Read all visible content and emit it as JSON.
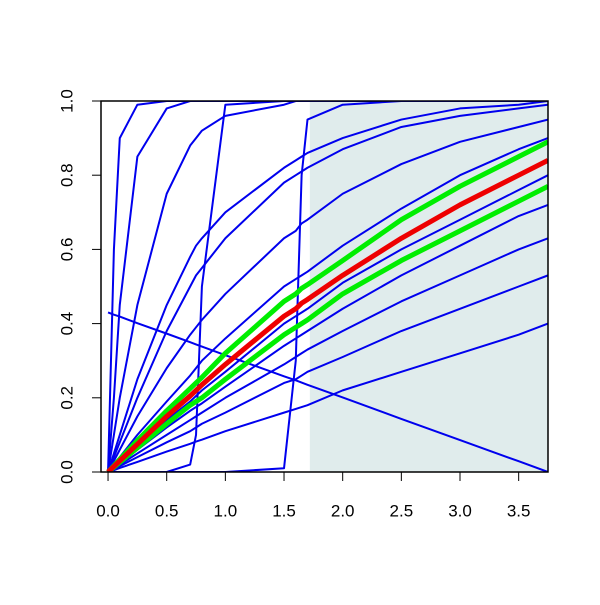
{
  "chart_data": {
    "type": "line",
    "x": [
      0,
      0.05,
      0.1,
      0.25,
      0.5,
      0.7,
      0.75,
      0.8,
      1.0,
      1.5,
      1.6,
      1.65,
      1.7,
      2.0,
      2.5,
      3.0,
      3.5,
      3.75
    ],
    "series": [
      {
        "color": "#0000ee",
        "values": [
          0,
          0.6,
          0.9,
          0.99,
          1,
          1,
          1,
          1,
          1,
          1,
          1,
          1,
          1,
          1,
          1,
          1,
          1,
          1
        ]
      },
      {
        "color": "#0000ee",
        "values": [
          0,
          0.2,
          0.45,
          0.85,
          0.98,
          1,
          1,
          1,
          1,
          1,
          1,
          1,
          1,
          1,
          1,
          1,
          1,
          1
        ]
      },
      {
        "color": "#0000ee",
        "values": [
          0,
          0.1,
          0.2,
          0.45,
          0.75,
          0.88,
          0.9,
          0.92,
          0.96,
          0.99,
          1,
          1,
          1,
          1,
          1,
          1,
          1,
          1
        ]
      },
      {
        "color": "#0000ee",
        "values": [
          0,
          0.05,
          0.1,
          0.25,
          0.45,
          0.58,
          0.61,
          0.63,
          0.7,
          0.82,
          0.84,
          0.85,
          0.86,
          0.9,
          0.95,
          0.98,
          0.99,
          1
        ]
      },
      {
        "color": "#0000ee",
        "values": [
          0,
          0,
          0,
          0,
          0,
          0.02,
          0.1,
          0.5,
          0.99,
          1,
          1,
          1,
          1,
          1,
          1,
          1,
          1,
          1
        ]
      },
      {
        "color": "#0000ee",
        "values": [
          0,
          0,
          0,
          0,
          0,
          0,
          0,
          0,
          0,
          0.01,
          0.3,
          0.8,
          0.95,
          0.99,
          1,
          1,
          1,
          1
        ]
      },
      {
        "color": "#0000ee",
        "values": [
          0.43,
          0.424,
          0.419,
          0.401,
          0.373,
          0.35,
          0.344,
          0.338,
          0.315,
          0.258,
          0.247,
          0.241,
          0.235,
          0.201,
          0.143,
          0.086,
          0.029,
          0
        ]
      },
      {
        "color": "#0000ee",
        "values": [
          0,
          0.03,
          0.06,
          0.15,
          0.28,
          0.37,
          0.39,
          0.41,
          0.48,
          0.63,
          0.65,
          0.67,
          0.68,
          0.75,
          0.83,
          0.89,
          0.93,
          0.95
        ]
      },
      {
        "color": "#0000ee",
        "values": [
          0,
          0.01,
          0.02,
          0.05,
          0.1,
          0.14,
          0.15,
          0.16,
          0.2,
          0.29,
          0.31,
          0.32,
          0.33,
          0.38,
          0.46,
          0.53,
          0.6,
          0.63
        ]
      },
      {
        "color": "#0000ee",
        "values": [
          0,
          0.008,
          0.016,
          0.04,
          0.08,
          0.11,
          0.12,
          0.13,
          0.16,
          0.24,
          0.25,
          0.26,
          0.27,
          0.31,
          0.38,
          0.44,
          0.5,
          0.53
        ]
      },
      {
        "color": "#0000ee",
        "values": [
          0,
          0.005,
          0.011,
          0.027,
          0.055,
          0.076,
          0.082,
          0.087,
          0.11,
          0.16,
          0.17,
          0.175,
          0.18,
          0.22,
          0.27,
          0.32,
          0.37,
          0.4
        ]
      },
      {
        "color": "#0000ee",
        "values": [
          0,
          0.012,
          0.024,
          0.06,
          0.12,
          0.165,
          0.175,
          0.185,
          0.23,
          0.34,
          0.36,
          0.37,
          0.38,
          0.44,
          0.53,
          0.61,
          0.69,
          0.72
        ]
      },
      {
        "color": "#0000ee",
        "values": [
          0,
          0.02,
          0.04,
          0.1,
          0.19,
          0.26,
          0.28,
          0.3,
          0.36,
          0.5,
          0.52,
          0.53,
          0.54,
          0.61,
          0.71,
          0.8,
          0.87,
          0.9
        ]
      },
      {
        "color": "#0000ee",
        "values": [
          0,
          0.014,
          0.028,
          0.07,
          0.14,
          0.19,
          0.205,
          0.22,
          0.27,
          0.4,
          0.42,
          0.43,
          0.44,
          0.51,
          0.6,
          0.68,
          0.76,
          0.8
        ]
      },
      {
        "color": "#0000ee",
        "values": [
          0,
          0.04,
          0.08,
          0.2,
          0.38,
          0.5,
          0.53,
          0.55,
          0.63,
          0.78,
          0.8,
          0.81,
          0.82,
          0.87,
          0.93,
          0.96,
          0.98,
          0.99
        ]
      },
      {
        "color": "#00ee00",
        "width": 5,
        "values": [
          0,
          0.017,
          0.034,
          0.085,
          0.165,
          0.225,
          0.24,
          0.255,
          0.32,
          0.46,
          0.48,
          0.495,
          0.505,
          0.57,
          0.68,
          0.77,
          0.85,
          0.89
        ]
      },
      {
        "color": "#00ee00",
        "width": 5,
        "values": [
          0,
          0.013,
          0.026,
          0.065,
          0.13,
          0.18,
          0.19,
          0.2,
          0.25,
          0.37,
          0.39,
          0.4,
          0.41,
          0.48,
          0.57,
          0.65,
          0.73,
          0.77
        ]
      },
      {
        "color": "#ee0000",
        "width": 5,
        "values": [
          0,
          0.015,
          0.03,
          0.075,
          0.15,
          0.205,
          0.22,
          0.235,
          0.29,
          0.42,
          0.44,
          0.455,
          0.465,
          0.53,
          0.63,
          0.72,
          0.8,
          0.84
        ]
      }
    ],
    "shaded_region": {
      "x": [
        1.72,
        3.75
      ],
      "y": [
        0,
        1
      ],
      "color": "#e0ecec"
    },
    "xlim": [
      -0.06,
      3.75
    ],
    "ylim": [
      0,
      1
    ],
    "xticks": [
      {
        "value": 0,
        "label": "0.0"
      },
      0.5,
      {
        "value": 1,
        "label": "1.0"
      },
      1.5,
      {
        "value": 2,
        "label": "2.0"
      },
      2.5,
      {
        "value": 3,
        "label": "3.0"
      },
      3.5
    ],
    "yticks": [
      {
        "value": 0,
        "label": "0.0"
      },
      0.2,
      0.4,
      0.6,
      0.8,
      {
        "value": 1,
        "label": "1.0"
      }
    ]
  }
}
